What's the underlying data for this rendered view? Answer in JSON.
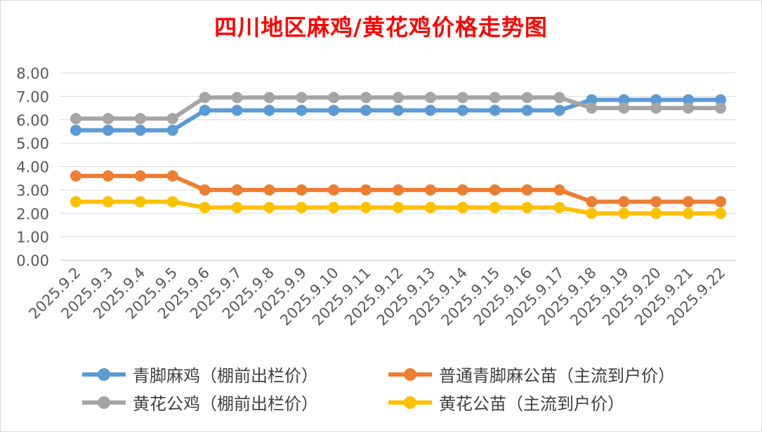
{
  "chart_data": {
    "type": "line",
    "title": "四川地区麻鸡/黄花鸡价格走势图",
    "xlabel": "",
    "ylabel": "",
    "ylim": [
      0,
      8
    ],
    "yticks": [
      "0.00",
      "1.00",
      "2.00",
      "3.00",
      "4.00",
      "5.00",
      "6.00",
      "7.00",
      "8.00"
    ],
    "grid": true,
    "legend_position": "bottom",
    "categories": [
      "2025.9.2",
      "2025.9.3",
      "2025.9.4",
      "2025.9.5",
      "2025.9.6",
      "2025.9.7",
      "2025.9.8",
      "2025.9.9",
      "2025.9.10",
      "2025.9.11",
      "2025.9.12",
      "2025.9.13",
      "2025.9.14",
      "2025.9.15",
      "2025.9.16",
      "2025.9.17",
      "2025.9.18",
      "2025.9.19",
      "2025.9.20",
      "2025.9.21",
      "2025.9.22"
    ],
    "series": [
      {
        "name": "青脚麻鸡（棚前出栏价）",
        "color": "#5b9bd5",
        "values": [
          5.55,
          5.55,
          5.55,
          5.55,
          6.4,
          6.4,
          6.4,
          6.4,
          6.4,
          6.4,
          6.4,
          6.4,
          6.4,
          6.4,
          6.4,
          6.4,
          6.85,
          6.85,
          6.85,
          6.85,
          6.85
        ]
      },
      {
        "name": "普通青脚麻公苗（主流到户价）",
        "color": "#ed7d31",
        "values": [
          3.6,
          3.6,
          3.6,
          3.6,
          3.0,
          3.0,
          3.0,
          3.0,
          3.0,
          3.0,
          3.0,
          3.0,
          3.0,
          3.0,
          3.0,
          3.0,
          2.5,
          2.5,
          2.5,
          2.5,
          2.5
        ]
      },
      {
        "name": "黄花公鸡（棚前出栏价）",
        "color": "#a5a5a5",
        "values": [
          6.05,
          6.05,
          6.05,
          6.05,
          6.95,
          6.95,
          6.95,
          6.95,
          6.95,
          6.95,
          6.95,
          6.95,
          6.95,
          6.95,
          6.95,
          6.95,
          6.5,
          6.5,
          6.5,
          6.5,
          6.5
        ]
      },
      {
        "name": "黄花公苗（主流到户价）",
        "color": "#ffc000",
        "values": [
          2.5,
          2.5,
          2.5,
          2.5,
          2.25,
          2.25,
          2.25,
          2.25,
          2.25,
          2.25,
          2.25,
          2.25,
          2.25,
          2.25,
          2.25,
          2.25,
          2.0,
          2.0,
          2.0,
          2.0,
          2.0
        ]
      }
    ]
  }
}
